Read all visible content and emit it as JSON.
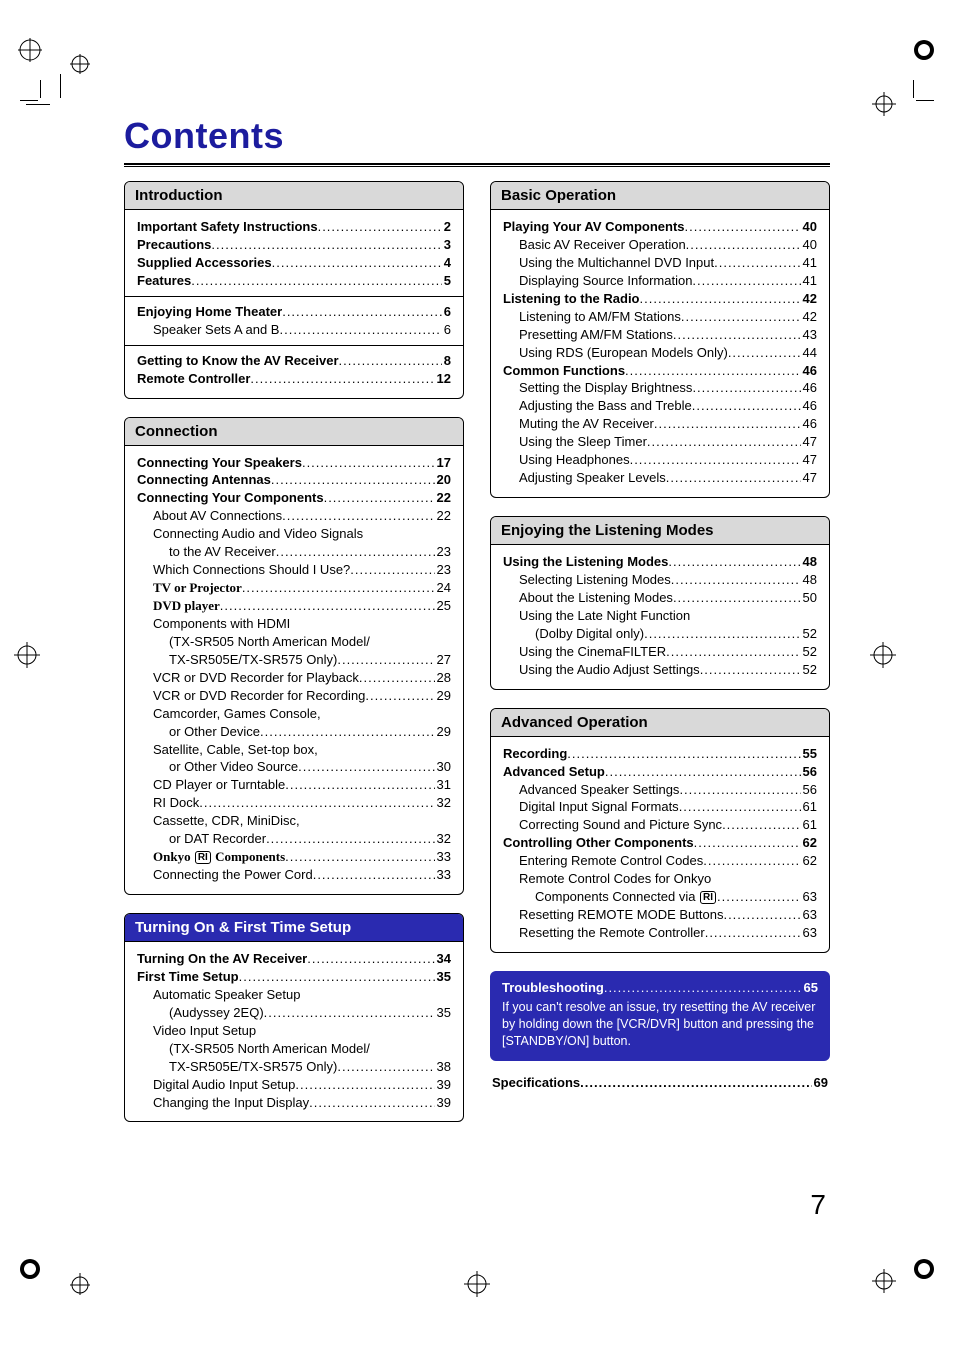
{
  "page_number": "7",
  "title": "Contents",
  "colors": {
    "title_color": "#1c1c9e",
    "header_gray": "#d9d9d9",
    "header_dark": "#2a2ab0",
    "text": "#000000",
    "bg": "#ffffff"
  },
  "left": {
    "intro": {
      "header": "Introduction",
      "group1": [
        {
          "label": "Important Safety Instructions",
          "page": "2",
          "bold": true
        },
        {
          "label": "Precautions",
          "page": "3",
          "bold": true
        },
        {
          "label": "Supplied Accessories",
          "page": "4",
          "bold": true
        },
        {
          "label": "Features",
          "page": "5",
          "bold": true
        }
      ],
      "group2": [
        {
          "label": "Enjoying Home Theater",
          "page": "6",
          "bold": true
        },
        {
          "label": "Speaker Sets A and B",
          "page": "6",
          "indent": 1
        }
      ],
      "group3": [
        {
          "label": "Getting to Know the AV Receiver",
          "page": "8",
          "bold": true
        },
        {
          "label": "Remote Controller",
          "page": "12",
          "bold": true
        }
      ]
    },
    "connection": {
      "header": "Connection",
      "rows": [
        {
          "label": "Connecting Your Speakers",
          "page": "17",
          "bold": true
        },
        {
          "label": "Connecting Antennas",
          "page": "20",
          "bold": true
        },
        {
          "label": "Connecting Your Components",
          "page": "22",
          "bold": true
        },
        {
          "label": "About AV Connections",
          "page": "22",
          "indent": 1
        },
        {
          "label": "Connecting Audio and Video Signals",
          "cont": true,
          "indent": 1
        },
        {
          "label": "to the AV Receiver",
          "page": "23",
          "indent": 2
        },
        {
          "label": "Which Connections Should I Use?",
          "page": "23",
          "indent": 1
        },
        {
          "label": "TV or Projector",
          "page": "24",
          "indent": 1,
          "serif": true
        },
        {
          "label": "DVD player",
          "page": "25",
          "indent": 1,
          "serif": true
        },
        {
          "label": "Components with HDMI",
          "cont": true,
          "indent": 1
        },
        {
          "label": "(TX-SR505 North American Model/",
          "cont": true,
          "indent": 2
        },
        {
          "label": "TX-SR505E/TX-SR575 Only)",
          "page": "27",
          "indent": 2
        },
        {
          "label": "VCR or DVD Recorder for Playback",
          "page": "28",
          "indent": 1
        },
        {
          "label": "VCR or DVD Recorder for Recording",
          "page": "29",
          "indent": 1
        },
        {
          "label": "Camcorder, Games Console,",
          "cont": true,
          "indent": 1
        },
        {
          "label": "or Other Device",
          "page": "29",
          "indent": 2
        },
        {
          "label": "Satellite, Cable, Set-top box,",
          "cont": true,
          "indent": 1
        },
        {
          "label": "or Other Video Source",
          "page": "30",
          "indent": 2
        },
        {
          "label": "CD Player or Turntable",
          "page": "31",
          "indent": 1
        },
        {
          "label": "RI Dock",
          "page": "32",
          "indent": 1
        },
        {
          "label": "Cassette, CDR, MiniDisc,",
          "cont": true,
          "indent": 1
        },
        {
          "label": "or DAT Recorder",
          "page": "32",
          "indent": 2
        },
        {
          "label_pre": "Onkyo ",
          "ri": true,
          "label_post": " Components",
          "page": "33",
          "indent": 1,
          "serif": true
        },
        {
          "label": "Connecting the Power Cord",
          "page": "33",
          "indent": 1
        }
      ]
    },
    "turning_on": {
      "header": "Turning On & First Time Setup",
      "rows": [
        {
          "label": "Turning On the AV Receiver",
          "page": "34",
          "bold": true
        },
        {
          "label": "First Time Setup",
          "page": "35",
          "bold": true
        },
        {
          "label": "Automatic Speaker Setup",
          "cont": true,
          "indent": 1
        },
        {
          "label": "(Audyssey 2EQ)",
          "page": "35",
          "indent": 2
        },
        {
          "label": "Video Input Setup",
          "cont": true,
          "indent": 1
        },
        {
          "label": "(TX-SR505 North American Model/",
          "cont": true,
          "indent": 2
        },
        {
          "label": "TX-SR505E/TX-SR575 Only)",
          "page": "38",
          "indent": 2
        },
        {
          "label": "Digital Audio Input Setup",
          "page": "39",
          "indent": 1
        },
        {
          "label": "Changing the Input Display",
          "page": "39",
          "indent": 1
        }
      ]
    }
  },
  "right": {
    "basic_op": {
      "header": "Basic Operation",
      "rows": [
        {
          "label": "Playing Your AV Components",
          "page": "40",
          "bold": true
        },
        {
          "label": "Basic AV Receiver Operation",
          "page": "40",
          "indent": 1
        },
        {
          "label": "Using the Multichannel DVD Input",
          "page": "41",
          "indent": 1
        },
        {
          "label": "Displaying Source Information",
          "page": "41",
          "indent": 1
        },
        {
          "label": "Listening to the Radio",
          "page": "42",
          "bold": true
        },
        {
          "label": "Listening to AM/FM Stations",
          "page": "42",
          "indent": 1
        },
        {
          "label": "Presetting AM/FM Stations",
          "page": "43",
          "indent": 1
        },
        {
          "label": "Using RDS (European Models Only)",
          "page": "44",
          "indent": 1
        },
        {
          "label": "Common Functions",
          "page": "46",
          "bold": true
        },
        {
          "label": "Setting the Display Brightness",
          "page": "46",
          "indent": 1
        },
        {
          "label": "Adjusting the Bass and Treble",
          "page": "46",
          "indent": 1
        },
        {
          "label": "Muting the AV Receiver",
          "page": "46",
          "indent": 1
        },
        {
          "label": "Using the Sleep Timer",
          "page": "47",
          "indent": 1
        },
        {
          "label": "Using Headphones",
          "page": "47",
          "indent": 1
        },
        {
          "label": "Adjusting Speaker Levels",
          "page": "47",
          "indent": 1
        }
      ]
    },
    "listening_modes": {
      "header": "Enjoying the Listening Modes",
      "rows": [
        {
          "label": "Using the Listening Modes",
          "page": "48",
          "bold": true
        },
        {
          "label": "Selecting Listening Modes",
          "page": "48",
          "indent": 1
        },
        {
          "label": "About the Listening Modes",
          "page": "50",
          "indent": 1
        },
        {
          "label": "Using the Late Night Function",
          "cont": true,
          "indent": 1
        },
        {
          "label": "(Dolby Digital only)",
          "page": "52",
          "indent": 2
        },
        {
          "label": "Using the CinemaFILTER",
          "page": "52",
          "indent": 1
        },
        {
          "label": "Using the Audio Adjust Settings",
          "page": "52",
          "indent": 1
        }
      ]
    },
    "advanced_op": {
      "header": "Advanced Operation",
      "rows": [
        {
          "label": "Recording",
          "page": "55",
          "bold": true
        },
        {
          "label": "Advanced Setup",
          "page": "56",
          "bold": true
        },
        {
          "label": "Advanced Speaker Settings",
          "page": "56",
          "indent": 1
        },
        {
          "label": "Digital Input Signal Formats",
          "page": "61",
          "indent": 1
        },
        {
          "label": "Correcting Sound and Picture Sync",
          "page": "61",
          "indent": 1
        },
        {
          "label": "Controlling Other Components",
          "page": "62",
          "bold": true
        },
        {
          "label": "Entering Remote Control Codes",
          "page": "62",
          "indent": 1
        },
        {
          "label": "Remote Control Codes for Onkyo",
          "cont": true,
          "indent": 1
        },
        {
          "label_pre": "Components Connected via ",
          "ri": true,
          "label_post": "",
          "page": "63",
          "indent": 2
        },
        {
          "label": "Resetting REMOTE MODE Buttons",
          "page": "63",
          "indent": 1
        },
        {
          "label": "Resetting the Remote Controller",
          "page": "63",
          "indent": 1
        }
      ]
    },
    "troubleshooting": {
      "label": "Troubleshooting",
      "page": "65",
      "note": "If you can't resolve an issue, try resetting the AV receiver by holding down the [VCR/DVR] button and pressing the [STANDBY/ON] button."
    },
    "specifications": {
      "label": "Specifications",
      "page": "69"
    }
  }
}
